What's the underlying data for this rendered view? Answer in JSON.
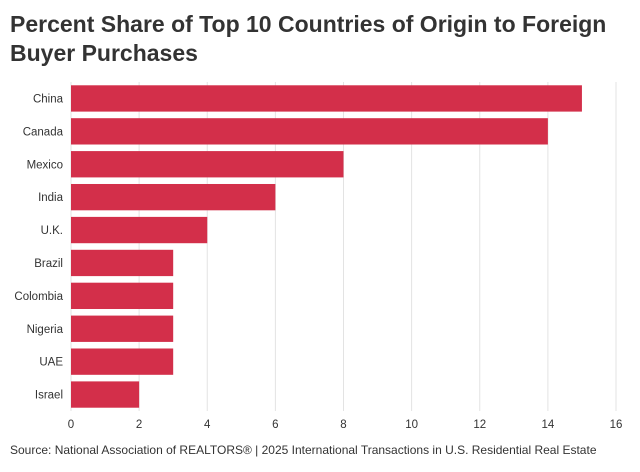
{
  "chart_data": {
    "type": "bar",
    "orientation": "horizontal",
    "title": "Percent Share of Top 10 Countries of Origin to Foreign Buyer Purchases",
    "categories": [
      "China",
      "Canada",
      "Mexico",
      "India",
      "U.K.",
      "Brazil",
      "Colombia",
      "Nigeria",
      "UAE",
      "Israel"
    ],
    "values": [
      15,
      14,
      8,
      6,
      4,
      3,
      3,
      3,
      3,
      2
    ],
    "xlim": [
      0,
      16
    ],
    "xticks": [
      0,
      2,
      4,
      6,
      8,
      10,
      12,
      14,
      16
    ],
    "grid": "vertical",
    "bar_color": "#d32f4a",
    "source": "Source: National Association of REALTORS® | 2025 International Transactions in U.S. Residential Real Estate"
  }
}
